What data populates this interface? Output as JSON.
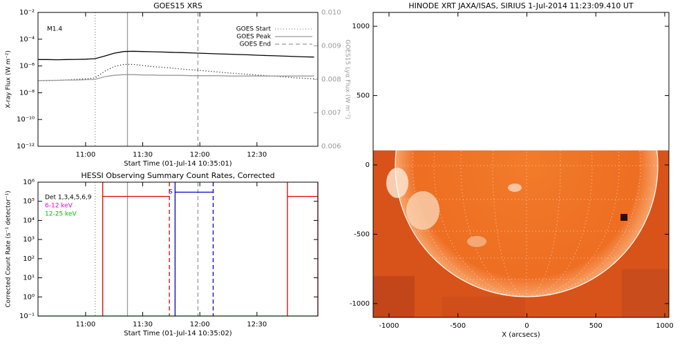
{
  "chart_data": [
    {
      "type": "line",
      "title": "GOES15 XRS",
      "xlabel": "Start Time (01-Jul-14 10:35:01)",
      "ylabel": "X-ray Flux (W m⁻²)",
      "y2label": "GOES15 Lyα Flux (W m⁻²)",
      "xlim": [
        "10:35",
        "13:02"
      ],
      "xticks": [
        "11:00",
        "11:30",
        "12:00",
        "12:30"
      ],
      "ylim": [
        1e-12,
        0.01
      ],
      "ylog": true,
      "yticks": [
        {
          "value": 1e-12,
          "label": "10⁻¹²"
        },
        {
          "value": 1e-10,
          "label": "10⁻¹⁰"
        },
        {
          "value": 1e-08,
          "label": "10⁻⁸"
        },
        {
          "value": 1e-06,
          "label": "10⁻⁶"
        },
        {
          "value": 0.0001,
          "label": "10⁻⁴"
        },
        {
          "value": 0.01,
          "label": "10⁻²"
        }
      ],
      "y2lim": [
        0.006,
        0.01
      ],
      "y2ticks": [
        0.006,
        0.007,
        0.008,
        0.009,
        {
          "value": 0.01,
          "label": "0.010"
        }
      ],
      "annotations": [
        "M1.4"
      ],
      "markers": [
        {
          "name": "GOES Start",
          "x": "11:05",
          "color": "#888888",
          "dash": "dotted"
        },
        {
          "name": "GOES Peak",
          "x": "11:22",
          "color": "#999999",
          "dash": "solid"
        },
        {
          "name": "GOES End",
          "x": "11:59",
          "color": "#999999",
          "dash": "dashed"
        }
      ],
      "series": [
        {
          "color": "#000000",
          "dash": "solid",
          "x": [
            "10:35",
            "10:40",
            "10:45",
            "10:50",
            "10:55",
            "11:00",
            "11:05",
            "11:10",
            "11:15",
            "11:20",
            "11:25",
            "11:30",
            "11:35",
            "11:40",
            "11:45",
            "11:50",
            "11:55",
            "12:00",
            "12:05",
            "12:10",
            "12:15",
            "12:20",
            "12:25",
            "12:30",
            "12:35",
            "12:40",
            "12:45",
            "12:50",
            "12:55",
            "13:00"
          ],
          "values": [
            3e-06,
            3e-06,
            2.9e-06,
            3e-06,
            3.1e-06,
            3.2e-06,
            3.5e-06,
            5.5e-06,
            9e-06,
            1.2e-05,
            1.25e-05,
            1.2e-05,
            1.15e-05,
            1.1e-05,
            1.05e-05,
            1e-05,
            9.5e-06,
            9e-06,
            8.5e-06,
            8e-06,
            7.6e-06,
            7.2e-06,
            6.8e-06,
            6.4e-06,
            6e-06,
            5.7e-06,
            5.4e-06,
            5.1e-06,
            4.8e-06,
            4.6e-06
          ]
        },
        {
          "color": "#000000",
          "dash": "dotted",
          "x": [
            "10:35",
            "10:40",
            "10:45",
            "10:50",
            "10:55",
            "11:00",
            "11:05",
            "11:10",
            "11:15",
            "11:20",
            "11:25",
            "11:30",
            "11:35",
            "11:40",
            "11:45",
            "11:50",
            "11:55",
            "12:00",
            "12:05",
            "12:10",
            "12:15",
            "12:20",
            "12:25",
            "12:30",
            "12:35",
            "12:40",
            "12:45",
            "12:50",
            "12:55",
            "13:00"
          ],
          "values": [
            8e-08,
            8e-08,
            8.5e-08,
            9e-08,
            1e-07,
            1.1e-07,
            1.3e-07,
            4e-07,
            9e-07,
            1.3e-06,
            1.3e-06,
            1.1e-06,
            9e-07,
            8e-07,
            7e-07,
            6e-07,
            5.2e-07,
            4.6e-07,
            4e-07,
            3.5e-07,
            3e-07,
            2.7e-07,
            2.4e-07,
            2.1e-07,
            1.9e-07,
            1.7e-07,
            1.5e-07,
            1.3e-07,
            1.2e-07,
            1.1e-07
          ]
        },
        {
          "color": "#999999",
          "dash": "solid",
          "axis": "y2",
          "x": [
            "10:35",
            "10:40",
            "10:45",
            "10:50",
            "10:55",
            "11:00",
            "11:05",
            "11:10",
            "11:15",
            "11:20",
            "11:25",
            "11:30",
            "11:35",
            "11:40",
            "11:45",
            "11:50",
            "11:55",
            "12:00",
            "12:05",
            "12:10",
            "12:15",
            "12:20",
            "12:25",
            "12:30",
            "12:35",
            "12:40",
            "12:45",
            "12:50",
            "12:55",
            "13:00"
          ],
          "values": [
            0.00796,
            0.00797,
            0.00797,
            0.00798,
            0.00798,
            0.00799,
            0.008,
            0.00808,
            0.00812,
            0.00814,
            0.00814,
            0.00813,
            0.00813,
            0.00812,
            0.00812,
            0.00812,
            0.00811,
            0.00811,
            0.00811,
            0.00811,
            0.0081,
            0.0081,
            0.0081,
            0.0081,
            0.0081,
            0.0081,
            0.0081,
            0.0081,
            0.0081,
            0.0081
          ]
        }
      ]
    },
    {
      "type": "line",
      "title": "HESSI Observing Summary Count Rates, Corrected",
      "xlabel": "Start Time (01-Jul-14 10:35:02)",
      "ylabel": "Corrected Count Rate (s⁻¹ detector⁻¹)",
      "xlim": [
        "10:35",
        "13:02"
      ],
      "xticks": [
        "11:00",
        "11:30",
        "12:00",
        "12:30"
      ],
      "ylim": [
        0.1,
        1000000
      ],
      "ylog": true,
      "yticks": [
        {
          "value": 0.1,
          "label": "10⁻¹"
        },
        {
          "value": 1,
          "label": "10⁰"
        },
        {
          "value": 10,
          "label": "10¹"
        },
        {
          "value": 100,
          "label": "10²"
        },
        {
          "value": 1000,
          "label": "10³"
        },
        {
          "value": 10000,
          "label": "10⁴"
        },
        {
          "value": 100000,
          "label": "10⁵"
        },
        {
          "value": 1000000,
          "label": "10⁶"
        }
      ],
      "legend": [
        {
          "label": "Det 1,3,4,5,6,9",
          "color": "#000000"
        },
        {
          "label": "6-12 keV",
          "color": "#e000e0"
        },
        {
          "label": "12-25 keV",
          "color": "#00c000"
        }
      ],
      "annotations": [
        "S"
      ],
      "markers": [
        {
          "x": "11:05",
          "color": "#888888",
          "dash": "dotted"
        },
        {
          "x": "11:22",
          "color": "#999999",
          "dash": "solid"
        },
        {
          "x": "11:59",
          "color": "#999999",
          "dash": "dashed"
        },
        {
          "x": "11:09",
          "color": "#e00000",
          "dash": "solid"
        },
        {
          "x": "11:44",
          "color": "#e00000",
          "dash": "dashed"
        },
        {
          "x": "11:47",
          "color": "#0000c0",
          "dash": "solid"
        },
        {
          "x": "12:07",
          "color": "#0000c0",
          "dash": "dashed"
        },
        {
          "x": "12:46",
          "color": "#e00000",
          "dash": "solid"
        },
        {
          "x": "13:02",
          "color": "#e00000",
          "dash": "solid"
        }
      ],
      "series": [
        {
          "color": "#e00000",
          "dash": "solid",
          "x": [
            "11:09",
            "11:44",
            "11:45",
            "12:46",
            "13:02"
          ],
          "values": [
            180000,
            180000,
            null,
            180000,
            180000
          ]
        },
        {
          "color": "#0000c0",
          "dash": "solid",
          "x": [
            "11:47",
            "12:07"
          ],
          "values": [
            300000,
            300000
          ]
        },
        {
          "color": "#00c000",
          "dash": "solid",
          "x": [
            "10:35",
            "13:02"
          ],
          "values": [
            0.1,
            0.1
          ]
        }
      ]
    },
    {
      "type": "image",
      "title": "HINODE XRT JAXA/ISAS, SIRIUS   1-Jul-2014 11:23:09.410 UT",
      "xlabel": "X (arcsecs)",
      "xlim": [
        -1115,
        1030
      ],
      "xticks": [
        -1000,
        -500,
        0,
        500,
        1000
      ],
      "ylim": [
        -1100,
        1100
      ],
      "yticks": [
        -1000,
        -500,
        0,
        500,
        1000
      ]
    }
  ]
}
